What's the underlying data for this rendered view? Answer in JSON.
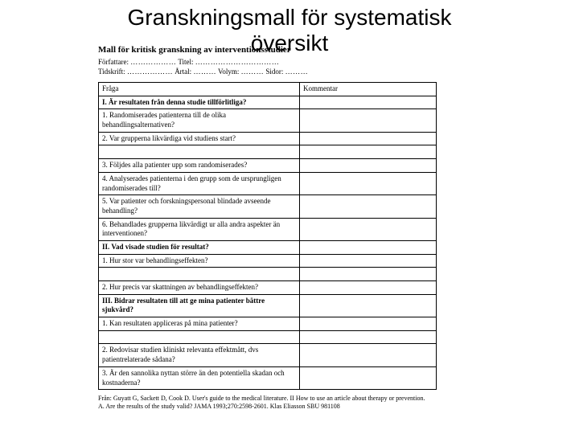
{
  "page_title_line1": "Granskningsmall för systematisk",
  "page_title_line2": "översikt",
  "doc": {
    "heading": "Mall för kritisk granskning av interventionsstudier",
    "meta1_label": "Författare:",
    "meta1_dots": "………………",
    "meta1_titel": "Titel:",
    "meta1_titel_dots": "……………………………",
    "meta2_tidskrift": "Tidskrift:",
    "meta2_tidskrift_dots": "………………",
    "meta2_artal": "Årtal:",
    "meta2_artal_dots": "………",
    "meta2_volym": "Volym:",
    "meta2_volym_dots": "………",
    "meta2_sidor": "Sidor:",
    "meta2_sidor_dots": "………"
  },
  "table": {
    "header_l": "Fråga",
    "header_r": "Kommentar",
    "rows": [
      {
        "type": "section",
        "text": "I. Är resultaten från denna studie tillförlitliga?"
      },
      {
        "type": "q",
        "text": "1. Randomiserades patienterna till de olika behandlingsalternativen?"
      },
      {
        "type": "q",
        "text": "2. Var grupperna likvärdiga vid studiens start?"
      },
      {
        "type": "blank"
      },
      {
        "type": "q",
        "text": "3. Följdes alla patienter upp som randomiserades?"
      },
      {
        "type": "q",
        "text": "4. Analyserades patienterna i den grupp som de ursprungligen randomiserades till?"
      },
      {
        "type": "q",
        "text": "5. Var patienter och forskningspersonal blindade avseende behandling?"
      },
      {
        "type": "q",
        "text": "6. Behandlades grupperna likvärdigt ur alla andra aspekter än interventionen?"
      },
      {
        "type": "section",
        "text": "II. Vad visade studien för resultat?"
      },
      {
        "type": "q",
        "text": "1. Hur stor var behandlingseffekten?"
      },
      {
        "type": "blank"
      },
      {
        "type": "q",
        "text": "2. Hur precis var skattningen av behandlingseffekten?"
      },
      {
        "type": "section",
        "text": "III. Bidrar resultaten till att ge mina patienter bättre sjukvård?"
      },
      {
        "type": "q",
        "text": "1. Kan resultaten appliceras på mina patienter?"
      },
      {
        "type": "blank"
      },
      {
        "type": "q",
        "text": "2. Redovisar studien kliniskt relevanta effektmått, dvs patientrelaterade sådana?"
      },
      {
        "type": "q",
        "text": "3. Är den sannolika nyttan större än den potentiella skadan och kostnaderna?"
      }
    ]
  },
  "footer": {
    "line1": "Från: Guyatt G, Sackett D, Cook D. User's guide to the medical literature. II How to use an article about therapy or prevention.",
    "line2": "A. Are the results of the study valid? JAMA 1993;270:2598-2601. Klas Eliasson  SBU 981108"
  },
  "colors": {
    "text": "#000000",
    "background": "#ffffff",
    "border": "#000000"
  }
}
